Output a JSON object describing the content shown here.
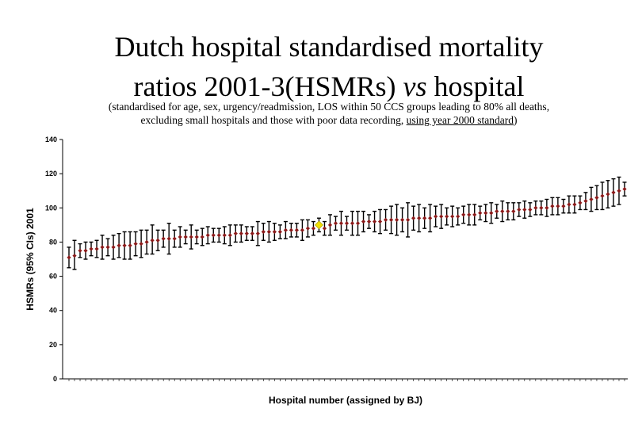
{
  "title": {
    "line1": "Dutch hospital standardised mortality",
    "line2_a": "ratios 2001-3(HSMRs) ",
    "line2_b": "vs",
    "line2_c": " hospital"
  },
  "subtitle": {
    "line1": "(standardised for age, sex, urgency/readmission, LOS within 50 CCS groups leading to 80% all deaths,",
    "line2_a": "excluding small hospitals and those with poor data recording, ",
    "line2_b": "using year 2000 standard",
    "line2_c": ")"
  },
  "colors": {
    "point": "#8b1a1a",
    "error_bar": "#000000",
    "highlight": "#f0e000"
  },
  "chart_data": {
    "type": "scatter",
    "xlabel": "Hospital number (assigned by BJ)",
    "ylabel": "HSMRs (95% CIs) 2001",
    "ylim": [
      0,
      140
    ],
    "yticks": [
      0,
      20,
      40,
      60,
      80,
      100,
      120,
      140
    ],
    "grid": false,
    "legend": "none",
    "highlight_index": 45,
    "series": [
      {
        "values": [
          71,
          72,
          75,
          75,
          76,
          76,
          77,
          77,
          77,
          78,
          78,
          78,
          79,
          79,
          80,
          81,
          81,
          82,
          82,
          82,
          83,
          83,
          83,
          83,
          83,
          84,
          84,
          84,
          84,
          84,
          85,
          85,
          85,
          85,
          85,
          86,
          86,
          86,
          86,
          87,
          87,
          87,
          87,
          88,
          88,
          90,
          88,
          90,
          91,
          91,
          91,
          91,
          91,
          92,
          92,
          92,
          92,
          93,
          93,
          93,
          93,
          93,
          94,
          94,
          94,
          94,
          95,
          95,
          95,
          95,
          95,
          96,
          96,
          96,
          97,
          97,
          97,
          98,
          98,
          98,
          98,
          99,
          99,
          99,
          100,
          100,
          100,
          101,
          101,
          101,
          102,
          102,
          103,
          104,
          105,
          106,
          107,
          108,
          109,
          110,
          111
        ],
        "lower": [
          65,
          64,
          71,
          70,
          72,
          71,
          70,
          72,
          70,
          71,
          70,
          70,
          72,
          71,
          73,
          73,
          75,
          77,
          73,
          77,
          77,
          79,
          76,
          79,
          78,
          79,
          80,
          80,
          79,
          78,
          80,
          80,
          81,
          81,
          78,
          81,
          80,
          81,
          82,
          82,
          83,
          83,
          81,
          83,
          84,
          86,
          84,
          84,
          87,
          84,
          87,
          84,
          84,
          86,
          88,
          86,
          85,
          87,
          85,
          84,
          86,
          83,
          87,
          86,
          88,
          86,
          89,
          88,
          90,
          89,
          90,
          91,
          90,
          90,
          93,
          92,
          91,
          94,
          92,
          93,
          93,
          95,
          94,
          95,
          96,
          96,
          95,
          96,
          96,
          97,
          97,
          97,
          99,
          99,
          98,
          99,
          99,
          100,
          101,
          102,
          107
        ],
        "upper": [
          77,
          81,
          79,
          80,
          80,
          81,
          84,
          82,
          84,
          85,
          86,
          86,
          86,
          87,
          87,
          90,
          87,
          87,
          91,
          87,
          89,
          87,
          90,
          87,
          88,
          89,
          88,
          88,
          89,
          90,
          90,
          90,
          89,
          89,
          92,
          91,
          92,
          91,
          90,
          92,
          91,
          91,
          93,
          93,
          92,
          94,
          92,
          96,
          95,
          98,
          95,
          98,
          98,
          98,
          96,
          98,
          99,
          99,
          101,
          102,
          100,
          103,
          101,
          102,
          100,
          102,
          101,
          102,
          100,
          101,
          100,
          101,
          102,
          102,
          101,
          102,
          103,
          102,
          104,
          103,
          103,
          103,
          104,
          103,
          104,
          104,
          105,
          106,
          106,
          105,
          107,
          107,
          107,
          109,
          112,
          113,
          115,
          116,
          117,
          118,
          115
        ]
      }
    ]
  }
}
